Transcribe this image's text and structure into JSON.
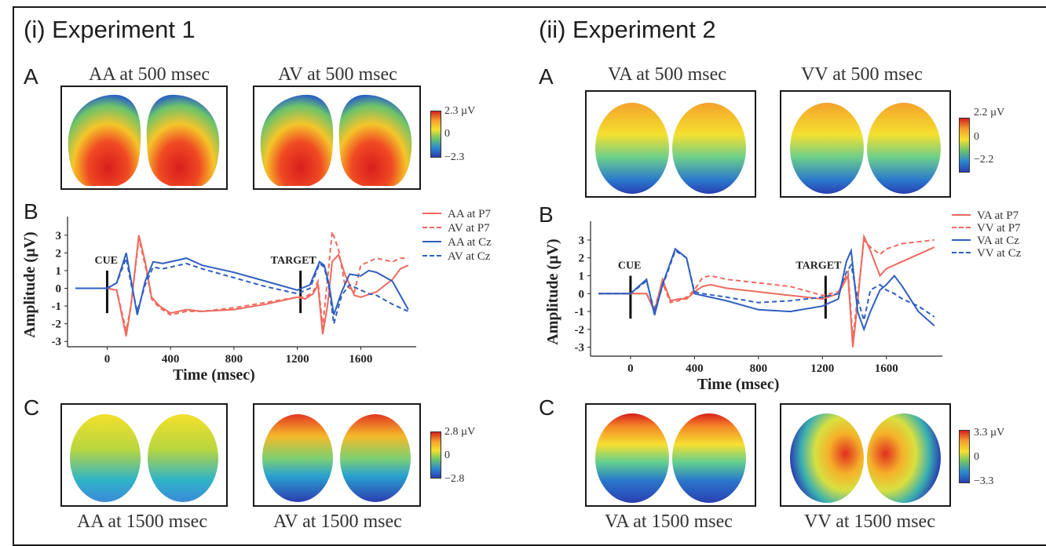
{
  "figure": {
    "exp1_title": "(i) Experiment 1",
    "exp2_title": "(ii) Experiment 2",
    "panel_labels": {
      "a": "A",
      "b": "B",
      "c": "C"
    },
    "exp1": {
      "A": {
        "left_title": "AA at 500 msec",
        "right_title": "AV at 500 msec",
        "scale_max": "2.3 µV",
        "scale_mid": "0",
        "scale_min": "−2.3"
      },
      "C": {
        "left_title": "AA at 1500 msec",
        "right_title": "AV at 1500 msec",
        "scale_max": "2.8 µV",
        "scale_mid": "0",
        "scale_min": "−2.8"
      }
    },
    "exp2": {
      "A": {
        "left_title": "VA at 500 msec",
        "right_title": "VV at 500 msec",
        "scale_max": "2.2 µV",
        "scale_mid": "0",
        "scale_min": "−2.2"
      },
      "C": {
        "left_title": "VA at 1500 msec",
        "right_title": "VV at 1500 msec",
        "scale_max": "3.3 µV",
        "scale_mid": "0",
        "scale_min": "−3.3"
      }
    },
    "colors": {
      "red": "#ef6a5e",
      "blue": "#2f5fc0",
      "scale_top": "#d62020",
      "scale_bottom": "#2a3fb0"
    }
  },
  "chart_data": [
    {
      "type": "line",
      "xlabel": "Time (msec)",
      "ylabel": "Amplitude (µV)",
      "xlim": [
        -250,
        1950
      ],
      "ylim": [
        -3.3,
        3.7
      ],
      "xticks": [
        0,
        400,
        800,
        1200,
        1600
      ],
      "yticks": [
        3,
        2,
        1,
        0,
        -1,
        -2,
        -3
      ],
      "markers": [
        {
          "x": 0,
          "label": "CUE"
        },
        {
          "x": 1220,
          "label": "TARGET"
        }
      ],
      "legend_position": "top-right",
      "series": [
        {
          "name": "AA at P7",
          "color": "#ef6a5e",
          "dash": false,
          "x": [
            -200,
            0,
            60,
            120,
            150,
            200,
            240,
            280,
            330,
            400,
            500,
            600,
            800,
            1000,
            1200,
            1250,
            1300,
            1330,
            1360,
            1390,
            1420,
            1460,
            1500,
            1560,
            1600,
            1700,
            1800,
            1850,
            1900
          ],
          "y": [
            0,
            0,
            -0.1,
            -2.7,
            -1,
            3,
            1.5,
            -0.5,
            -1,
            -1.4,
            -1.2,
            -1.3,
            -1.2,
            -0.9,
            -0.5,
            -0.6,
            -0.3,
            0.2,
            -2.6,
            -1,
            1.5,
            1.9,
            0.8,
            -0.4,
            -0.5,
            -0.2,
            0.5,
            1.1,
            1.3
          ]
        },
        {
          "name": "AV at P7",
          "color": "#ef6a5e",
          "dash": true,
          "x": [
            -200,
            0,
            60,
            120,
            150,
            200,
            240,
            280,
            330,
            400,
            500,
            600,
            800,
            1000,
            1200,
            1250,
            1300,
            1330,
            1360,
            1390,
            1420,
            1460,
            1500,
            1560,
            1600,
            1700,
            1800,
            1850,
            1900
          ],
          "y": [
            0,
            0,
            -0.1,
            -2.4,
            -1,
            2.8,
            1.3,
            -0.6,
            -1.1,
            -1.5,
            -1.3,
            -1.3,
            -1.1,
            -0.8,
            -0.5,
            -0.5,
            -0.2,
            0.4,
            -2.2,
            0.5,
            3.2,
            2.2,
            0.2,
            -0.2,
            1.3,
            1.7,
            1.5,
            1.7,
            1.7
          ]
        },
        {
          "name": "AA at Cz",
          "color": "#2f5fc0",
          "dash": false,
          "x": [
            -200,
            0,
            60,
            120,
            150,
            190,
            240,
            290,
            350,
            450,
            500,
            600,
            800,
            1000,
            1200,
            1280,
            1340,
            1370,
            1400,
            1430,
            1480,
            1530,
            1600,
            1650,
            1700,
            1800,
            1900
          ],
          "y": [
            0,
            0,
            0.3,
            2,
            0.5,
            -1.5,
            0.4,
            1.5,
            1.4,
            1.6,
            1.7,
            1.3,
            0.9,
            0.4,
            -0.1,
            0.2,
            1.5,
            1.3,
            0.2,
            -1.5,
            -0.2,
            0.8,
            0.7,
            1,
            0.9,
            0.4,
            -1.2
          ]
        },
        {
          "name": "AV at Cz",
          "color": "#2f5fc0",
          "dash": true,
          "x": [
            -200,
            0,
            60,
            120,
            150,
            190,
            240,
            290,
            350,
            450,
            500,
            600,
            800,
            1000,
            1200,
            1280,
            1340,
            1370,
            1400,
            1430,
            1480,
            1530,
            1600,
            1650,
            1700,
            1800,
            1900
          ],
          "y": [
            0,
            0,
            0.3,
            1.7,
            0.3,
            -1.3,
            0.2,
            1.2,
            1.1,
            1.3,
            1.4,
            1.1,
            0.6,
            0.1,
            -0.3,
            0,
            1.4,
            1.2,
            0,
            -2,
            -0.4,
            0.2,
            -0.1,
            -0.3,
            -0.4,
            -0.9,
            -1.3
          ]
        }
      ]
    },
    {
      "type": "line",
      "xlabel": "Time (msec)",
      "ylabel": "Amplitude (µV)",
      "xlim": [
        -250,
        1950
      ],
      "ylim": [
        -3.5,
        3.7
      ],
      "xticks": [
        0,
        400,
        800,
        1200,
        1600
      ],
      "yticks": [
        3,
        2,
        1,
        0,
        -1,
        -2,
        -3
      ],
      "markers": [
        {
          "x": 0,
          "label": "CUE"
        },
        {
          "x": 1220,
          "label": "TARGET"
        }
      ],
      "legend_position": "top-right",
      "series": [
        {
          "name": "VA at P7",
          "color": "#ef6a5e",
          "dash": false,
          "x": [
            -200,
            0,
            100,
            150,
            200,
            250,
            300,
            350,
            400,
            450,
            500,
            600,
            800,
            1000,
            1200,
            1300,
            1360,
            1390,
            1420,
            1460,
            1500,
            1560,
            1600,
            1700,
            1800,
            1900
          ],
          "y": [
            0,
            0,
            0,
            -1,
            0.8,
            -0.4,
            -0.3,
            -0.3,
            0.1,
            0.4,
            0.5,
            0.3,
            0.1,
            -0.1,
            -0.3,
            0,
            1,
            -3,
            -0.5,
            3.2,
            2.4,
            1,
            1.4,
            1.8,
            2.2,
            2.6
          ]
        },
        {
          "name": "VV at P7",
          "color": "#ef6a5e",
          "dash": true,
          "x": [
            -200,
            0,
            100,
            150,
            200,
            250,
            300,
            350,
            400,
            450,
            500,
            600,
            800,
            1000,
            1200,
            1300,
            1360,
            1390,
            1420,
            1460,
            1500,
            1560,
            1600,
            1700,
            1800,
            1900
          ],
          "y": [
            0,
            0,
            0,
            -0.8,
            0.6,
            -0.5,
            -0.4,
            -0.2,
            0.2,
            0.9,
            1,
            0.8,
            0.6,
            0.4,
            -0.1,
            0.1,
            1.2,
            -2.5,
            -0.2,
            3,
            2.6,
            2.2,
            2.5,
            2.8,
            2.9,
            3
          ]
        },
        {
          "name": "VA at Cz",
          "color": "#2f5fc0",
          "dash": false,
          "x": [
            -200,
            0,
            100,
            150,
            200,
            280,
            350,
            400,
            450,
            600,
            800,
            1000,
            1200,
            1300,
            1350,
            1380,
            1420,
            1460,
            1500,
            1560,
            1600,
            1650,
            1700,
            1800,
            1900
          ],
          "y": [
            0,
            0,
            0.8,
            -1.2,
            0.5,
            2.5,
            2,
            0,
            -0.1,
            -0.4,
            -0.9,
            -1,
            -0.7,
            -0.3,
            1.8,
            2.4,
            -1,
            -2,
            -1,
            0.2,
            0.5,
            1,
            0.4,
            -1,
            -1.8
          ]
        },
        {
          "name": "VV at Cz",
          "color": "#2f5fc0",
          "dash": true,
          "x": [
            -200,
            0,
            100,
            150,
            200,
            280,
            350,
            400,
            450,
            600,
            800,
            1000,
            1200,
            1300,
            1350,
            1380,
            1420,
            1460,
            1500,
            1560,
            1600,
            1650,
            1700,
            1800,
            1900
          ],
          "y": [
            0,
            0,
            0.7,
            -1,
            0.4,
            2.4,
            2,
            0.1,
            0,
            -0.2,
            -0.5,
            -0.4,
            -0.2,
            0,
            1.2,
            1.6,
            -0.3,
            -1.5,
            0.2,
            0.5,
            0.2,
            0,
            -0.3,
            -0.7,
            -1.3
          ]
        }
      ]
    }
  ]
}
